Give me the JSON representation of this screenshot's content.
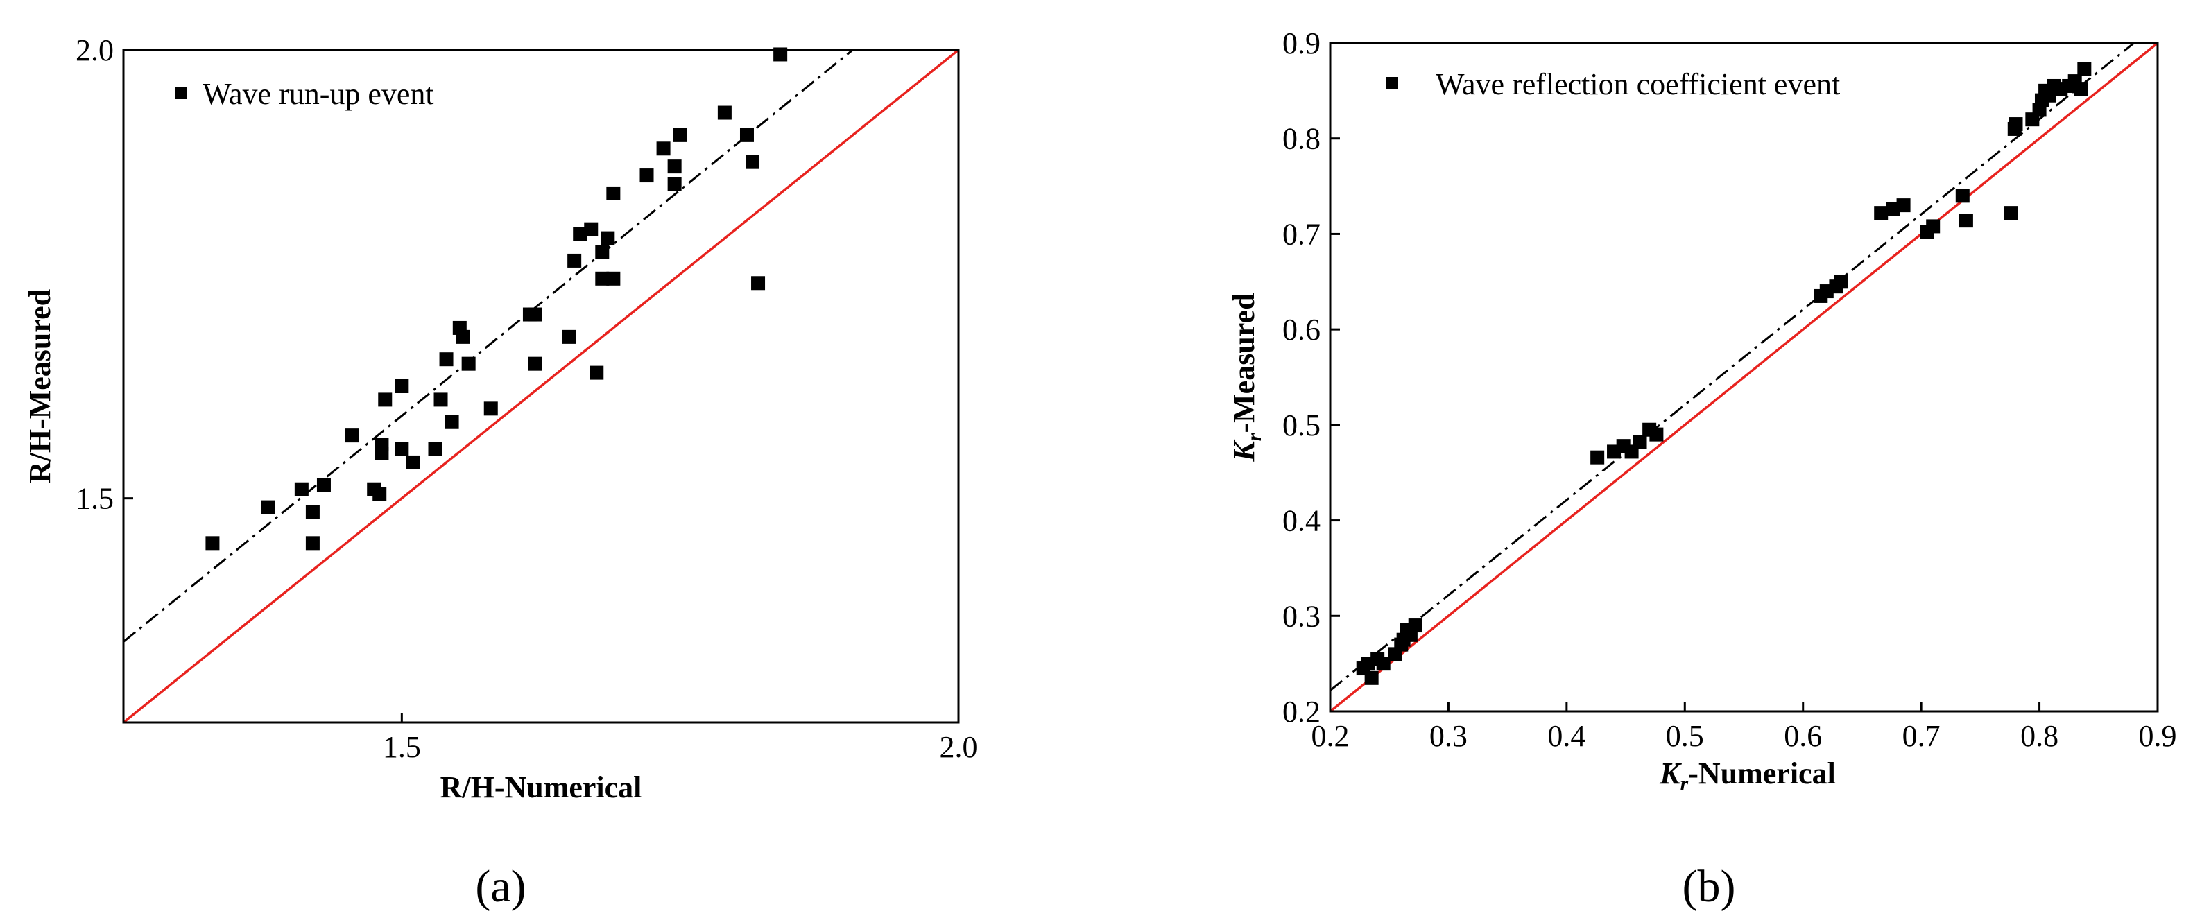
{
  "chart_data": [
    {
      "id": "a",
      "type": "scatter",
      "caption": "(a)",
      "xlabel": "R/H-Numerical",
      "ylabel": "R/H-Measured",
      "xlim": [
        1.25,
        2.0
      ],
      "ylim": [
        1.25,
        2.0
      ],
      "xticks": [
        1.5,
        2.0
      ],
      "xtick_labels": [
        "1.5",
        "2.0"
      ],
      "yticks": [
        1.5,
        2.0
      ],
      "ytick_labels": [
        "1.5",
        "2.0"
      ],
      "legend": "Wave run-up event",
      "reference_line": {
        "name": "y = x",
        "color": "#e8231f",
        "from": [
          1.25,
          1.25
        ],
        "to": [
          2.0,
          2.0
        ]
      },
      "fit_line": {
        "style": "dash-dot",
        "from": [
          1.25,
          1.34
        ],
        "to": [
          1.905,
          2.0
        ]
      },
      "points": [
        [
          1.33,
          1.45
        ],
        [
          1.38,
          1.49
        ],
        [
          1.41,
          1.51
        ],
        [
          1.42,
          1.485
        ],
        [
          1.42,
          1.45
        ],
        [
          1.43,
          1.515
        ],
        [
          1.455,
          1.57
        ],
        [
          1.475,
          1.51
        ],
        [
          1.48,
          1.505
        ],
        [
          1.482,
          1.56
        ],
        [
          1.482,
          1.55
        ],
        [
          1.485,
          1.61
        ],
        [
          1.5,
          1.625
        ],
        [
          1.5,
          1.555
        ],
        [
          1.51,
          1.54
        ],
        [
          1.53,
          1.555
        ],
        [
          1.535,
          1.61
        ],
        [
          1.54,
          1.655
        ],
        [
          1.545,
          1.585
        ],
        [
          1.552,
          1.69
        ],
        [
          1.555,
          1.68
        ],
        [
          1.56,
          1.65
        ],
        [
          1.58,
          1.6
        ],
        [
          1.615,
          1.705
        ],
        [
          1.62,
          1.705
        ],
        [
          1.62,
          1.65
        ],
        [
          1.65,
          1.68
        ],
        [
          1.655,
          1.765
        ],
        [
          1.66,
          1.795
        ],
        [
          1.67,
          1.8
        ],
        [
          1.675,
          1.64
        ],
        [
          1.68,
          1.745
        ],
        [
          1.68,
          1.775
        ],
        [
          1.685,
          1.79
        ],
        [
          1.69,
          1.745
        ],
        [
          1.69,
          1.84
        ],
        [
          1.72,
          1.86
        ],
        [
          1.735,
          1.89
        ],
        [
          1.745,
          1.85
        ],
        [
          1.745,
          1.87
        ],
        [
          1.75,
          1.905
        ],
        [
          1.79,
          1.93
        ],
        [
          1.81,
          1.905
        ],
        [
          1.815,
          1.875
        ],
        [
          1.82,
          1.74
        ],
        [
          1.84,
          1.995
        ]
      ]
    },
    {
      "id": "b",
      "type": "scatter",
      "caption": "(b)",
      "xlabel_symbol": "K",
      "xlabel_subscript": "r",
      "xlabel_rest": "-Numerical",
      "ylabel_symbol": "K",
      "ylabel_subscript": "r",
      "ylabel_rest": "-Measured",
      "xlim": [
        0.2,
        0.9
      ],
      "ylim": [
        0.2,
        0.9
      ],
      "xticks": [
        0.2,
        0.3,
        0.4,
        0.5,
        0.6,
        0.7,
        0.8,
        0.9
      ],
      "xtick_labels": [
        "0.2",
        "0.3",
        "0.4",
        "0.5",
        "0.6",
        "0.7",
        "0.8",
        "0.9"
      ],
      "yticks": [
        0.2,
        0.3,
        0.4,
        0.5,
        0.6,
        0.7,
        0.8,
        0.9
      ],
      "ytick_labels": [
        "0.2",
        "0.3",
        "0.4",
        "0.5",
        "0.6",
        "0.7",
        "0.8",
        "0.9"
      ],
      "legend": "Wave reflection coefficient event",
      "reference_line": {
        "name": "y = x",
        "color": "#e8231f",
        "from": [
          0.2,
          0.2
        ],
        "to": [
          0.9,
          0.9
        ]
      },
      "fit_line": {
        "style": "dash-dot",
        "from": [
          0.2,
          0.222
        ],
        "to": [
          0.88,
          0.9
        ]
      },
      "points": [
        [
          0.228,
          0.245
        ],
        [
          0.232,
          0.25
        ],
        [
          0.235,
          0.235
        ],
        [
          0.24,
          0.255
        ],
        [
          0.245,
          0.25
        ],
        [
          0.255,
          0.26
        ],
        [
          0.26,
          0.27
        ],
        [
          0.262,
          0.275
        ],
        [
          0.265,
          0.285
        ],
        [
          0.268,
          0.28
        ],
        [
          0.272,
          0.29
        ],
        [
          0.426,
          0.466
        ],
        [
          0.44,
          0.472
        ],
        [
          0.448,
          0.478
        ],
        [
          0.455,
          0.472
        ],
        [
          0.462,
          0.482
        ],
        [
          0.47,
          0.495
        ],
        [
          0.476,
          0.49
        ],
        [
          0.615,
          0.635
        ],
        [
          0.62,
          0.64
        ],
        [
          0.628,
          0.645
        ],
        [
          0.632,
          0.65
        ],
        [
          0.666,
          0.722
        ],
        [
          0.676,
          0.726
        ],
        [
          0.685,
          0.73
        ],
        [
          0.705,
          0.702
        ],
        [
          0.71,
          0.708
        ],
        [
          0.735,
          0.74
        ],
        [
          0.738,
          0.714
        ],
        [
          0.776,
          0.722
        ],
        [
          0.779,
          0.81
        ],
        [
          0.78,
          0.815
        ],
        [
          0.794,
          0.82
        ],
        [
          0.8,
          0.83
        ],
        [
          0.802,
          0.84
        ],
        [
          0.805,
          0.85
        ],
        [
          0.808,
          0.845
        ],
        [
          0.812,
          0.855
        ],
        [
          0.818,
          0.852
        ],
        [
          0.825,
          0.855
        ],
        [
          0.83,
          0.86
        ],
        [
          0.835,
          0.852
        ],
        [
          0.838,
          0.873
        ]
      ]
    }
  ]
}
